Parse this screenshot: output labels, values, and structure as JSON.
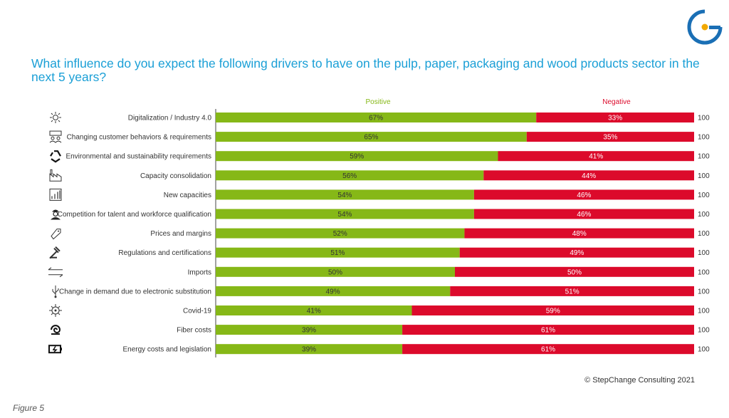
{
  "title": "What influence do you expect the following drivers to have on the pulp, paper, packaging and wood products sector in the next 5 years?",
  "copyright": "© StepChange Consulting 2021",
  "figure_label": "Figure 5",
  "colors": {
    "positive": "#86b817",
    "negative": "#dc0a2b",
    "title": "#1a9fd6",
    "logo_blue": "#1a6fb5",
    "logo_dot": "#f2a900"
  },
  "chart_data": {
    "type": "bar",
    "orientation": "horizontal",
    "stacked": true,
    "legend_position": "top",
    "grid": false,
    "xlim": [
      0,
      100
    ],
    "categories": [
      "Digitalization / Industry 4.0",
      "Changing customer behaviors & requirements",
      "Environmental and sustainability requirements",
      "Capacity consolidation",
      "New capacities",
      "Competition for talent and workforce qualification",
      "Prices and margins",
      "Regulations and certifications",
      "Imports",
      "Change in demand due to electronic substitution",
      "Covid-19",
      "Fiber costs",
      "Energy costs and legislation"
    ],
    "icons": [
      "sun-network-icon",
      "customer-screen-icon",
      "recycle-icon",
      "factory-icon",
      "bar-growth-icon",
      "worker-icon",
      "price-tag-icon",
      "gavel-icon",
      "arrows-exchange-icon",
      "usb-icon",
      "virus-icon",
      "fiber-swirl-icon",
      "battery-charging-icon"
    ],
    "series": [
      {
        "name": "Positive",
        "values": [
          67,
          65,
          59,
          56,
          54,
          54,
          52,
          51,
          50,
          49,
          41,
          39,
          39
        ],
        "labels": [
          "67%",
          "65%",
          "59%",
          "56%",
          "54%",
          "54%",
          "52%",
          "51%",
          "50%",
          "49%",
          "41%",
          "39%",
          "39%"
        ]
      },
      {
        "name": "Negative",
        "values": [
          33,
          35,
          41,
          44,
          46,
          46,
          48,
          49,
          50,
          51,
          59,
          61,
          61
        ],
        "labels": [
          "33%",
          "35%",
          "41%",
          "44%",
          "46%",
          "46%",
          "48%",
          "49%",
          "50%",
          "51%",
          "59%",
          "61%",
          "61%"
        ]
      }
    ],
    "totals": [
      "100",
      "100",
      "100",
      "100",
      "100",
      "100",
      "100",
      "100",
      "100",
      "100",
      "100",
      "100",
      "100"
    ]
  }
}
